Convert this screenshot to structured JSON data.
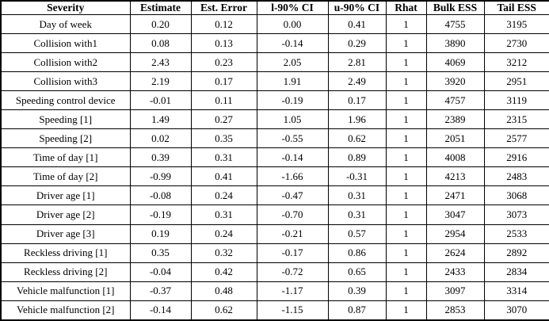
{
  "table": {
    "columns": [
      "Severity",
      "Estimate",
      "Est. Error",
      "l-90% CI",
      "u-90% CI",
      "Rhat",
      "Bulk ESS",
      "Tail ESS"
    ],
    "rows": [
      [
        "Day of week",
        "0.20",
        "0.12",
        "0.00",
        "0.41",
        "1",
        "4755",
        "3195"
      ],
      [
        "Collision with1",
        "0.08",
        "0.13",
        "-0.14",
        "0.29",
        "1",
        "3890",
        "2730"
      ],
      [
        "Collision with2",
        "2.43",
        "0.23",
        "2.05",
        "2.81",
        "1",
        "4069",
        "3212"
      ],
      [
        "Collision with3",
        "2.19",
        "0.17",
        "1.91",
        "2.49",
        "1",
        "3920",
        "2951"
      ],
      [
        "Speeding control device",
        "-0.01",
        "0.11",
        "-0.19",
        "0.17",
        "1",
        "4757",
        "3119"
      ],
      [
        "Speeding [1]",
        "1.49",
        "0.27",
        "1.05",
        "1.96",
        "1",
        "2389",
        "2315"
      ],
      [
        "Speeding [2]",
        "0.02",
        "0.35",
        "-0.55",
        "0.62",
        "1",
        "2051",
        "2577"
      ],
      [
        "Time of day [1]",
        "0.39",
        "0.31",
        "-0.14",
        "0.89",
        "1",
        "4008",
        "2916"
      ],
      [
        "Time of day [2]",
        "-0.99",
        "0.41",
        "-1.66",
        "-0.31",
        "1",
        "4213",
        "2483"
      ],
      [
        "Driver age [1]",
        "-0.08",
        "0.24",
        "-0.47",
        "0.31",
        "1",
        "2471",
        "3068"
      ],
      [
        "Driver age [2]",
        "-0.19",
        "0.31",
        "-0.70",
        "0.31",
        "1",
        "3047",
        "3073"
      ],
      [
        "Driver age [3]",
        "0.19",
        "0.24",
        "-0.21",
        "0.57",
        "1",
        "2954",
        "2533"
      ],
      [
        "Reckless driving [1]",
        "0.35",
        "0.32",
        "-0.17",
        "0.86",
        "1",
        "2624",
        "2892"
      ],
      [
        "Reckless driving [2]",
        "-0.04",
        "0.42",
        "-0.72",
        "0.65",
        "1",
        "2433",
        "2834"
      ],
      [
        "Vehicle malfunction [1]",
        "-0.37",
        "0.48",
        "-1.17",
        "0.39",
        "1",
        "3097",
        "3314"
      ],
      [
        "Vehicle malfunction [2]",
        "-0.14",
        "0.62",
        "-1.15",
        "0.87",
        "1",
        "2853",
        "3070"
      ]
    ]
  },
  "colors": {
    "border": "#000000",
    "text": "#000000",
    "background": "#ffffff"
  }
}
